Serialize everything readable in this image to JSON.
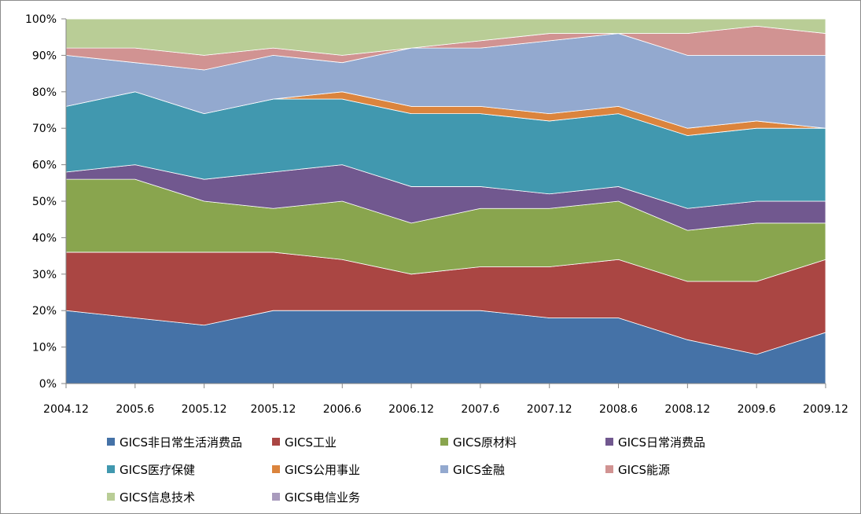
{
  "chart_data": {
    "type": "area",
    "stacked": "percent",
    "title": "",
    "xlabel": "",
    "ylabel": "",
    "ylim": [
      0,
      100
    ],
    "y_ticks": [
      "0%",
      "10%",
      "20%",
      "30%",
      "40%",
      "50%",
      "60%",
      "70%",
      "80%",
      "90%",
      "100%"
    ],
    "grid": false,
    "legend_position": "bottom",
    "categories": [
      "2004.12",
      "2005.6",
      "2005.12",
      "2005.12",
      "2006.6",
      "2006.12",
      "2007.6",
      "2007.12",
      "2008.6",
      "2008.12",
      "2009.6",
      "2009.12"
    ],
    "series": [
      {
        "name": "GICS非日常生活消费品",
        "color": "#4572A7",
        "values": [
          20,
          18,
          16,
          20,
          20,
          20,
          20,
          18,
          18,
          12,
          8,
          14
        ]
      },
      {
        "name": "GICS工业",
        "color": "#AA4643",
        "values": [
          16,
          18,
          20,
          16,
          14,
          10,
          12,
          14,
          16,
          16,
          20,
          20
        ]
      },
      {
        "name": "GICS原材料",
        "color": "#89A54E",
        "values": [
          20,
          20,
          14,
          12,
          16,
          14,
          16,
          16,
          16,
          14,
          16,
          10
        ]
      },
      {
        "name": "GICS日常消费品",
        "color": "#71588F",
        "values": [
          2,
          4,
          6,
          10,
          10,
          10,
          6,
          4,
          4,
          6,
          6,
          6
        ]
      },
      {
        "name": "GICS医疗保健",
        "color": "#4198AF",
        "values": [
          18,
          20,
          18,
          20,
          18,
          20,
          20,
          20,
          20,
          20,
          20,
          20
        ]
      },
      {
        "name": "GICS公用事业",
        "color": "#DB843D",
        "values": [
          0,
          0,
          0,
          0,
          2,
          2,
          2,
          2,
          2,
          2,
          2,
          0
        ]
      },
      {
        "name": "GICS金融",
        "color": "#93A9CF",
        "values": [
          14,
          8,
          12,
          12,
          8,
          16,
          16,
          20,
          20,
          20,
          18,
          20
        ]
      },
      {
        "name": "GICS能源",
        "color": "#D19392",
        "values": [
          2,
          4,
          4,
          2,
          2,
          0,
          2,
          2,
          0,
          6,
          8,
          6
        ]
      },
      {
        "name": "GICS信息技术",
        "color": "#B9CD96",
        "values": [
          8,
          8,
          10,
          8,
          10,
          8,
          6,
          4,
          4,
          4,
          2,
          4
        ]
      },
      {
        "name": "GICS电信业务",
        "color": "#A99BBD",
        "values": [
          0,
          0,
          0,
          0,
          0,
          0,
          0,
          0,
          0,
          0,
          0,
          0
        ]
      }
    ]
  }
}
